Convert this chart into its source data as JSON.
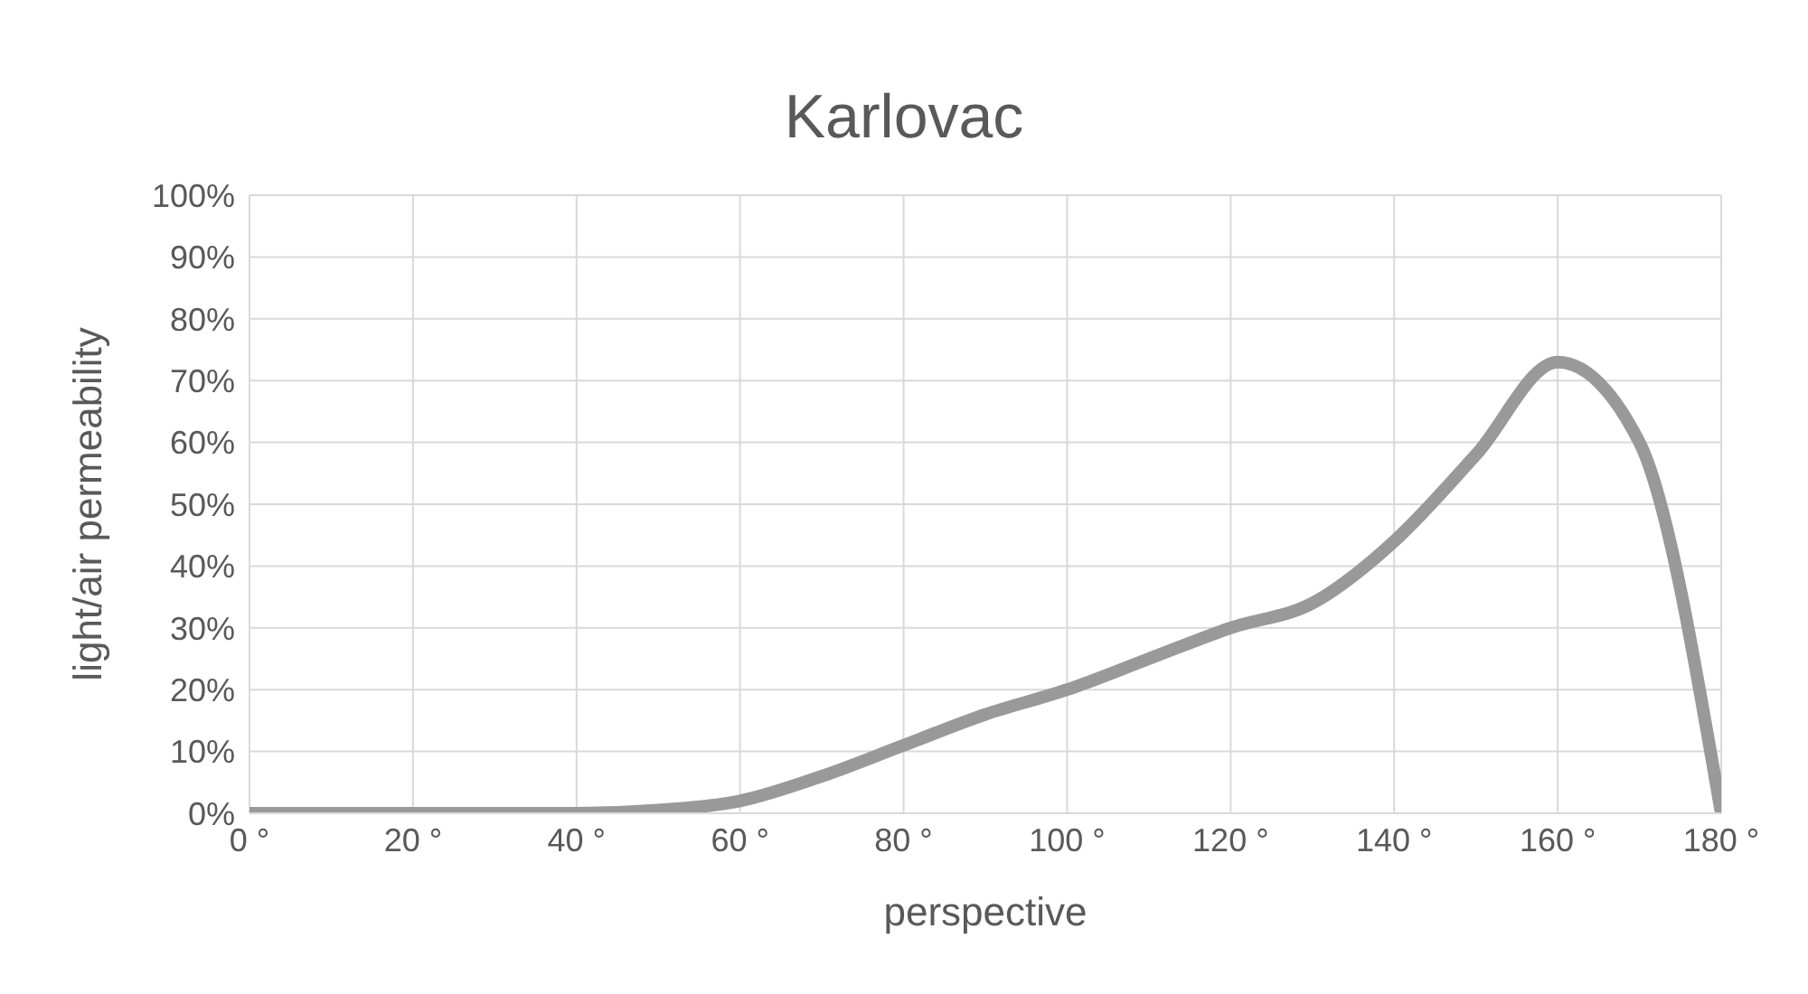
{
  "chart_data": {
    "type": "line",
    "title": "Karlovac",
    "xlabel": "perspective",
    "ylabel": "light/air permeability",
    "x": [
      0,
      10,
      20,
      30,
      40,
      50,
      60,
      70,
      80,
      90,
      100,
      110,
      120,
      130,
      140,
      150,
      160,
      170,
      180
    ],
    "series": [
      {
        "color": "#999999",
        "values": [
          0,
          0,
          0,
          0,
          0,
          0.5,
          2,
          6,
          11,
          16,
          20,
          25,
          30,
          34,
          44,
          58,
          73,
          60,
          0
        ]
      }
    ],
    "xlim": [
      0,
      180
    ],
    "xticks": [
      {
        "value": 0,
        "label": "0 °"
      },
      {
        "value": 20,
        "label": "20 °"
      },
      {
        "value": 40,
        "label": "40 °"
      },
      {
        "value": 60,
        "label": "60 °"
      },
      {
        "value": 80,
        "label": "80 °"
      },
      {
        "value": 100,
        "label": "100 °"
      },
      {
        "value": 120,
        "label": "120 °"
      },
      {
        "value": 140,
        "label": "140 °"
      },
      {
        "value": 160,
        "label": "160 °"
      },
      {
        "value": 180,
        "label": "180 °"
      }
    ],
    "ylim": [
      0,
      100
    ],
    "yticks": [
      {
        "value": 0,
        "label": "0%"
      },
      {
        "value": 10,
        "label": "10%"
      },
      {
        "value": 20,
        "label": "20%"
      },
      {
        "value": 30,
        "label": "30%"
      },
      {
        "value": 40,
        "label": "40%"
      },
      {
        "value": 50,
        "label": "50%"
      },
      {
        "value": 60,
        "label": "60%"
      },
      {
        "value": 70,
        "label": "70%"
      },
      {
        "value": 80,
        "label": "80%"
      },
      {
        "value": 90,
        "label": "90%"
      },
      {
        "value": 100,
        "label": "100%"
      }
    ],
    "grid": true,
    "marker": "none",
    "line_style": "solid"
  }
}
